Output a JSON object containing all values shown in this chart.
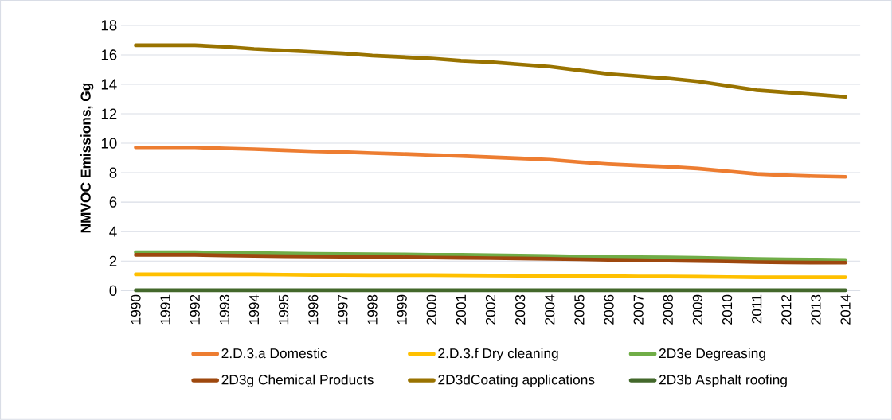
{
  "chart_data": {
    "type": "line",
    "ylabel": "NMVOC Emissions, Gg",
    "categories": [
      "1990",
      "1991",
      "1992",
      "1993",
      "1994",
      "1995",
      "1996",
      "1997",
      "1998",
      "1999",
      "2000",
      "2001",
      "2002",
      "2003",
      "2004",
      "2005",
      "2006",
      "2007",
      "2008",
      "2009",
      "2010",
      "2011",
      "2012",
      "2013",
      "2014"
    ],
    "ylim": [
      0,
      18
    ],
    "yticks": [
      0,
      2,
      4,
      6,
      8,
      10,
      12,
      14,
      16,
      18
    ],
    "grid": "y",
    "legend": "bottom",
    "marker": "none",
    "line_style": "solid",
    "series": [
      {
        "name": "2.D.3.a Domestic",
        "color": "#ed7d31",
        "values": [
          9.72,
          9.72,
          9.72,
          9.65,
          9.6,
          9.52,
          9.45,
          9.4,
          9.33,
          9.27,
          9.2,
          9.13,
          9.05,
          8.97,
          8.88,
          8.72,
          8.58,
          8.48,
          8.4,
          8.28,
          8.1,
          7.92,
          7.82,
          7.76,
          7.72
        ]
      },
      {
        "name": "2.D.3.f Dry cleaning",
        "color": "#ffc000",
        "values": [
          1.1,
          1.1,
          1.1,
          1.1,
          1.1,
          1.08,
          1.06,
          1.06,
          1.05,
          1.05,
          1.05,
          1.03,
          1.02,
          1.01,
          1.0,
          0.99,
          0.98,
          0.96,
          0.95,
          0.94,
          0.92,
          0.9,
          0.9,
          0.9,
          0.9
        ]
      },
      {
        "name": "2D3e Degreasing",
        "color": "#70ad47",
        "values": [
          2.6,
          2.6,
          2.6,
          2.58,
          2.55,
          2.52,
          2.5,
          2.48,
          2.47,
          2.45,
          2.43,
          2.42,
          2.4,
          2.37,
          2.34,
          2.31,
          2.28,
          2.26,
          2.25,
          2.22,
          2.18,
          2.14,
          2.12,
          2.1,
          2.08
        ]
      },
      {
        "name": "2D3g Chemical Products",
        "color": "#9e480e",
        "values": [
          2.42,
          2.42,
          2.42,
          2.38,
          2.36,
          2.33,
          2.32,
          2.3,
          2.28,
          2.26,
          2.24,
          2.22,
          2.2,
          2.18,
          2.15,
          2.12,
          2.09,
          2.06,
          2.03,
          2.01,
          1.97,
          1.93,
          1.91,
          1.9,
          1.89
        ]
      },
      {
        "name": "2D3dCoating applications",
        "color": "#997300",
        "values": [
          16.65,
          16.65,
          16.65,
          16.55,
          16.4,
          16.3,
          16.2,
          16.1,
          15.95,
          15.85,
          15.75,
          15.6,
          15.5,
          15.35,
          15.2,
          14.95,
          14.7,
          14.55,
          14.4,
          14.2,
          13.9,
          13.6,
          13.45,
          13.3,
          13.15
        ]
      },
      {
        "name": "2D3b Asphalt roofing",
        "color": "#43682b",
        "values": [
          0.02,
          0.02,
          0.02,
          0.02,
          0.02,
          0.02,
          0.02,
          0.02,
          0.02,
          0.02,
          0.02,
          0.02,
          0.02,
          0.02,
          0.02,
          0.02,
          0.02,
          0.02,
          0.02,
          0.02,
          0.02,
          0.02,
          0.02,
          0.02,
          0.02
        ]
      }
    ]
  }
}
